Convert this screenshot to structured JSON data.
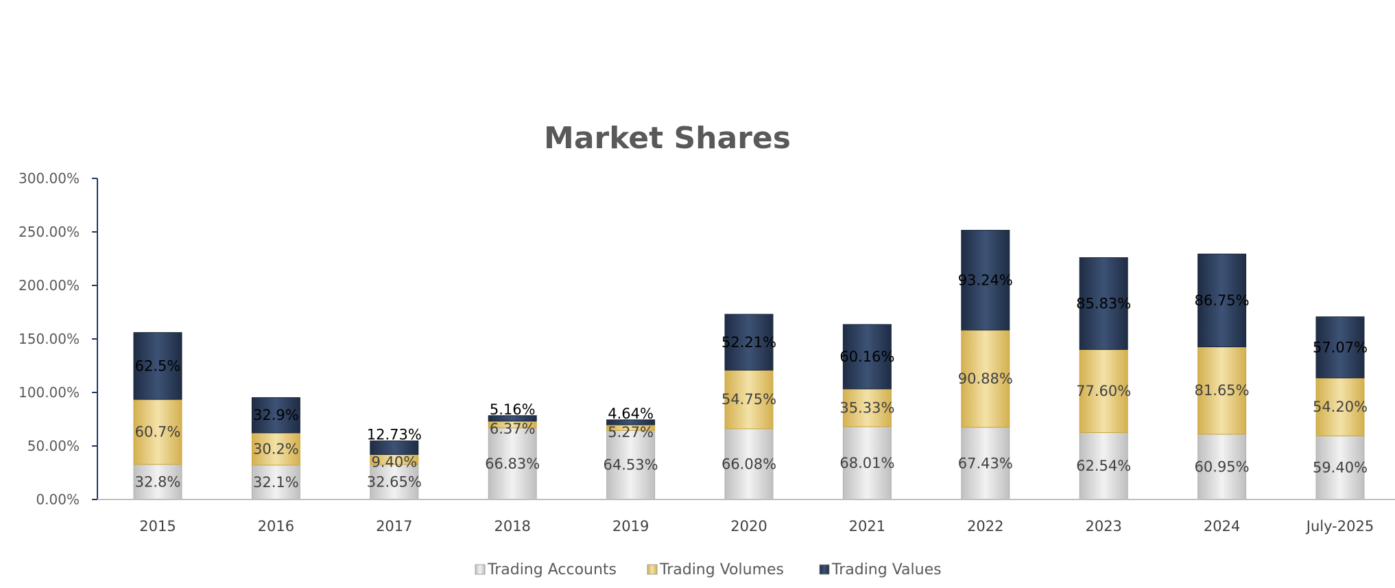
{
  "chart_data": {
    "type": "bar",
    "stacked": true,
    "title": "Market Shares",
    "xlabel": "",
    "ylabel": "",
    "ylim": [
      0,
      300
    ],
    "yticks": [
      "0.00%",
      "50.00%",
      "100.00%",
      "150.00%",
      "200.00%",
      "250.00%",
      "300.00%"
    ],
    "categories": [
      "2015",
      "2016",
      "2017",
      "2018",
      "2019",
      "2020",
      "2021",
      "2022",
      "2023",
      "2024",
      "July-2025"
    ],
    "series": [
      {
        "name": "Trading Accounts",
        "color": "#d9d9d9",
        "values": [
          32.8,
          32.1,
          32.65,
          66.83,
          64.53,
          66.08,
          68.01,
          67.43,
          62.54,
          60.95,
          59.4
        ],
        "labels": [
          "32.8%",
          "32.1%",
          "32.65%",
          "66.83%",
          "64.53%",
          "66.08%",
          "68.01%",
          "67.43%",
          "62.54%",
          "60.95%",
          "59.40%"
        ]
      },
      {
        "name": "Trading Volumes",
        "color": "#e6c97a",
        "values": [
          60.7,
          30.2,
          9.4,
          6.37,
          5.27,
          54.75,
          35.33,
          90.88,
          77.6,
          81.65,
          54.2
        ],
        "labels": [
          "60.7%",
          "30.2%",
          "9.40%",
          "6.37%",
          "5.27%",
          "54.75%",
          "35.33%",
          "90.88%",
          "77.60%",
          "81.65%",
          "54.20%"
        ]
      },
      {
        "name": "Trading Values",
        "color": "#2c3e5c",
        "values": [
          62.5,
          32.9,
          12.73,
          5.16,
          4.64,
          52.21,
          60.16,
          93.24,
          85.83,
          86.75,
          57.07
        ],
        "labels": [
          "62.5%",
          "32.9%",
          "12.73%",
          "5.16%",
          "4.64%",
          "52.21%",
          "60.16%",
          "93.24%",
          "85.83%",
          "86.75%",
          "57.07%"
        ]
      }
    ],
    "grid": false,
    "legend": "bottom"
  }
}
